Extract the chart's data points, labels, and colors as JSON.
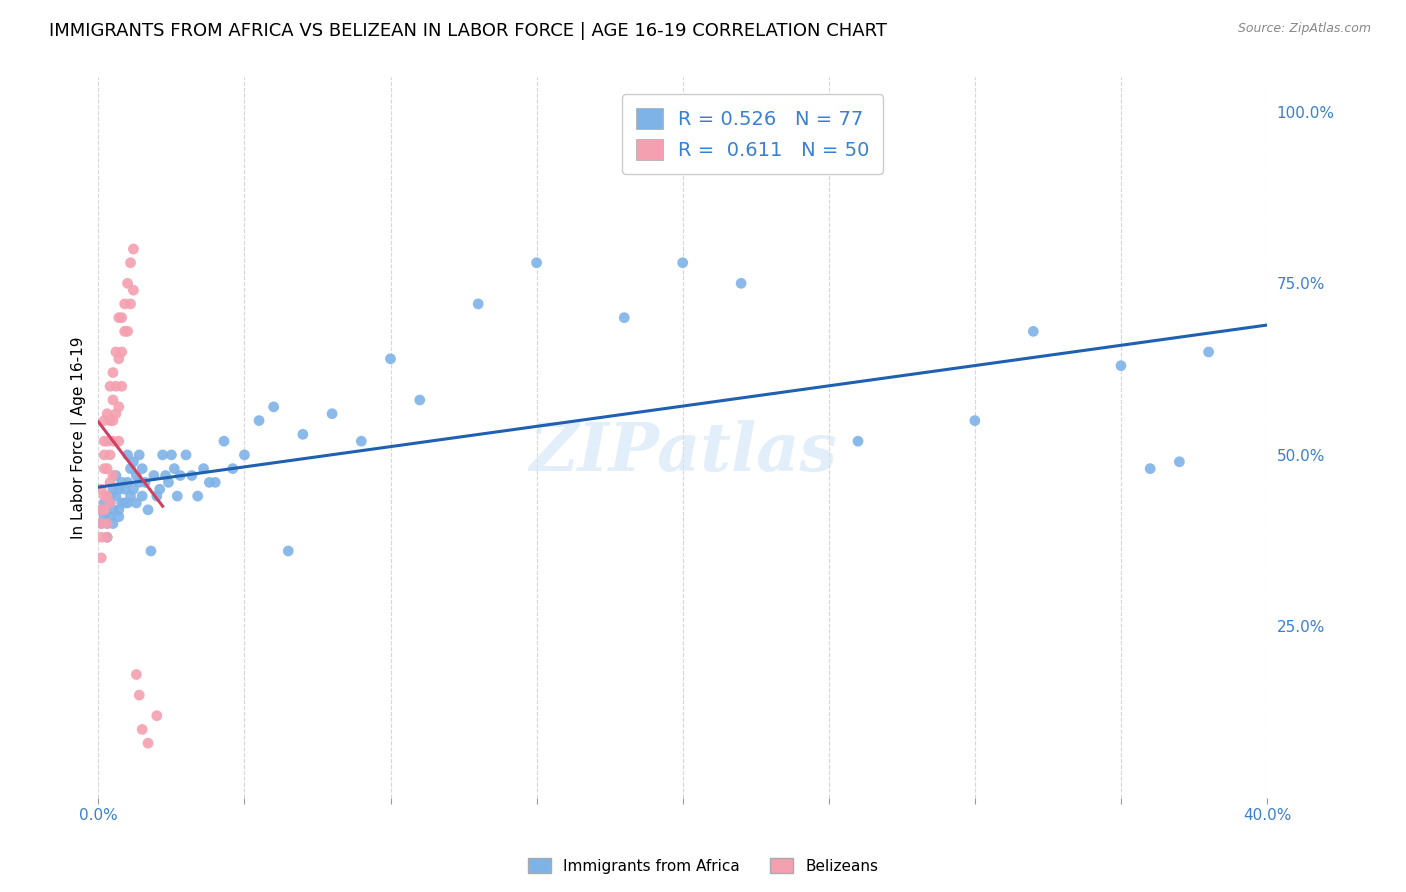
{
  "title": "IMMIGRANTS FROM AFRICA VS BELIZEAN IN LABOR FORCE | AGE 16-19 CORRELATION CHART",
  "source": "Source: ZipAtlas.com",
  "ylabel": "In Labor Force | Age 16-19",
  "xlim": [
    0.0,
    0.4
  ],
  "ylim": [
    0.0,
    1.05
  ],
  "x_tick_positions": [
    0.0,
    0.05,
    0.1,
    0.15,
    0.2,
    0.25,
    0.3,
    0.35,
    0.4
  ],
  "x_tick_labels": [
    "0.0%",
    "",
    "",
    "",
    "",
    "",
    "",
    "",
    "40.0%"
  ],
  "y_ticks_right": [
    0.25,
    0.5,
    0.75,
    1.0
  ],
  "y_tick_labels_right": [
    "25.0%",
    "50.0%",
    "75.0%",
    "100.0%"
  ],
  "R_africa": 0.526,
  "N_africa": 77,
  "R_belize": 0.611,
  "N_belize": 50,
  "color_africa": "#7eb3e8",
  "color_belize": "#f4a0b0",
  "line_color_africa": "#2060b0",
  "line_color_belize": "#d04060",
  "legend_text_color": "#3a80d0",
  "watermark": "ZIPatlas",
  "background_color": "#ffffff",
  "grid_color": "#cccccc",
  "title_fontsize": 13,
  "africa_scatter_x": [
    0.001,
    0.001,
    0.002,
    0.002,
    0.003,
    0.003,
    0.003,
    0.004,
    0.004,
    0.004,
    0.005,
    0.005,
    0.005,
    0.006,
    0.006,
    0.007,
    0.007,
    0.007,
    0.008,
    0.008,
    0.009,
    0.009,
    0.01,
    0.01,
    0.01,
    0.011,
    0.011,
    0.012,
    0.012,
    0.013,
    0.013,
    0.014,
    0.014,
    0.015,
    0.015,
    0.016,
    0.017,
    0.018,
    0.019,
    0.02,
    0.021,
    0.022,
    0.023,
    0.024,
    0.025,
    0.026,
    0.027,
    0.028,
    0.03,
    0.032,
    0.034,
    0.036,
    0.038,
    0.04,
    0.043,
    0.046,
    0.05,
    0.055,
    0.06,
    0.065,
    0.07,
    0.08,
    0.09,
    0.1,
    0.11,
    0.13,
    0.15,
    0.18,
    0.2,
    0.22,
    0.26,
    0.3,
    0.32,
    0.35,
    0.36,
    0.37,
    0.38
  ],
  "africa_scatter_y": [
    0.42,
    0.4,
    0.43,
    0.41,
    0.44,
    0.4,
    0.38,
    0.43,
    0.41,
    0.44,
    0.45,
    0.42,
    0.4,
    0.44,
    0.47,
    0.45,
    0.42,
    0.41,
    0.46,
    0.43,
    0.45,
    0.43,
    0.5,
    0.46,
    0.43,
    0.48,
    0.44,
    0.49,
    0.45,
    0.47,
    0.43,
    0.5,
    0.46,
    0.48,
    0.44,
    0.46,
    0.42,
    0.36,
    0.47,
    0.44,
    0.45,
    0.5,
    0.47,
    0.46,
    0.5,
    0.48,
    0.44,
    0.47,
    0.5,
    0.47,
    0.44,
    0.48,
    0.46,
    0.46,
    0.52,
    0.48,
    0.5,
    0.55,
    0.57,
    0.36,
    0.53,
    0.56,
    0.52,
    0.64,
    0.58,
    0.72,
    0.78,
    0.7,
    0.78,
    0.75,
    0.52,
    0.55,
    0.68,
    0.63,
    0.48,
    0.49,
    0.65
  ],
  "belize_scatter_x": [
    0.001,
    0.001,
    0.001,
    0.001,
    0.001,
    0.002,
    0.002,
    0.002,
    0.002,
    0.002,
    0.002,
    0.003,
    0.003,
    0.003,
    0.003,
    0.003,
    0.003,
    0.004,
    0.004,
    0.004,
    0.004,
    0.004,
    0.005,
    0.005,
    0.005,
    0.005,
    0.005,
    0.006,
    0.006,
    0.006,
    0.007,
    0.007,
    0.007,
    0.007,
    0.008,
    0.008,
    0.008,
    0.009,
    0.009,
    0.01,
    0.01,
    0.011,
    0.011,
    0.012,
    0.012,
    0.013,
    0.014,
    0.015,
    0.017,
    0.02
  ],
  "belize_scatter_y": [
    0.42,
    0.4,
    0.38,
    0.45,
    0.35,
    0.5,
    0.48,
    0.44,
    0.52,
    0.42,
    0.55,
    0.48,
    0.52,
    0.44,
    0.4,
    0.56,
    0.38,
    0.55,
    0.5,
    0.46,
    0.6,
    0.43,
    0.58,
    0.52,
    0.47,
    0.62,
    0.55,
    0.6,
    0.65,
    0.56,
    0.64,
    0.7,
    0.57,
    0.52,
    0.7,
    0.65,
    0.6,
    0.72,
    0.68,
    0.75,
    0.68,
    0.78,
    0.72,
    0.8,
    0.74,
    0.18,
    0.15,
    0.1,
    0.08,
    0.12
  ],
  "belize_line_x_start": 0.0,
  "belize_line_x_end": 0.022,
  "africa_line_x_start": 0.0,
  "africa_line_x_end": 0.4
}
